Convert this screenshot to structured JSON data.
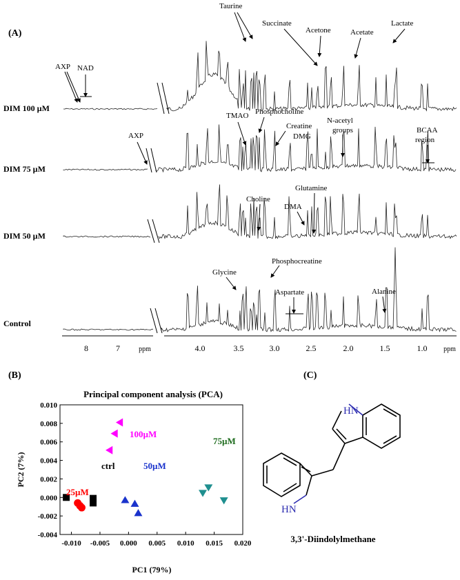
{
  "panel_a": {
    "label": "(A)",
    "spectra": [
      {
        "name": "DIM 100 µM",
        "key": "dim100"
      },
      {
        "name": "DIM 75 µM",
        "key": "dim75"
      },
      {
        "name": "DIM 50 µM",
        "key": "dim50"
      },
      {
        "name": "Control",
        "key": "control"
      }
    ],
    "axis_left": {
      "ticks": [
        "8",
        "7"
      ],
      "unit": "ppm"
    },
    "axis_right": {
      "ticks": [
        "4.0",
        "3.5",
        "3.0",
        "2.5",
        "2.0",
        "1.5",
        "1.0"
      ],
      "unit": "ppm"
    },
    "annotations": [
      {
        "text": "AXP",
        "key": "axp1"
      },
      {
        "text": "NAD",
        "key": "nad"
      },
      {
        "text": "Taurine",
        "key": "taurine"
      },
      {
        "text": "Succinate",
        "key": "succinate"
      },
      {
        "text": "Acetone",
        "key": "acetone"
      },
      {
        "text": "Acetate",
        "key": "acetate"
      },
      {
        "text": "Lactate",
        "key": "lactate"
      },
      {
        "text": "AXP",
        "key": "axp2"
      },
      {
        "text": "TMAO",
        "key": "tmao"
      },
      {
        "text": "Phosphocholine",
        "key": "phosphocholine"
      },
      {
        "text": "Creatine",
        "key": "creatine"
      },
      {
        "text": "DMG",
        "key": "dmg"
      },
      {
        "text": "N-acetyl",
        "key": "nacetyl1"
      },
      {
        "text": "groups",
        "key": "nacetyl2"
      },
      {
        "text": "BCAA",
        "key": "bcaa1"
      },
      {
        "text": "region",
        "key": "bcaa2"
      },
      {
        "text": "Glutamine",
        "key": "glutamine"
      },
      {
        "text": "Choline",
        "key": "choline"
      },
      {
        "text": "DMA",
        "key": "dma"
      },
      {
        "text": "Glycine",
        "key": "glycine"
      },
      {
        "text": "Phosphocreatine",
        "key": "phosphocreatine"
      },
      {
        "text": "Aspartate",
        "key": "aspartate"
      },
      {
        "text": "Alanine",
        "key": "alanine"
      }
    ]
  },
  "panel_b": {
    "label": "(B)",
    "chart_data": {
      "type": "scatter",
      "title": "Principal component analysis (PCA)",
      "xlabel": "PC1 (79%)",
      "ylabel": "PC2 (7%)",
      "xlim": [
        -0.012,
        0.02
      ],
      "ylim": [
        -0.004,
        0.01
      ],
      "xticks": [
        "-0.010",
        "-0.005",
        "0.000",
        "0.005",
        "0.010",
        "0.015",
        "0.020"
      ],
      "yticks": [
        "0.010",
        "0.008",
        "0.006",
        "0.004",
        "0.002",
        "0.000",
        "-0.002",
        "-0.004"
      ],
      "grid": false,
      "series": [
        {
          "name": "ctrl",
          "marker": "square",
          "color": "#000000",
          "points": [
            [
              -0.0109,
              0.0
            ],
            [
              -0.0062,
              -0.0001
            ],
            [
              -0.0062,
              -0.0006
            ]
          ]
        },
        {
          "name": "25µM",
          "marker": "circle",
          "color": "#ff0000",
          "points": [
            [
              -0.0089,
              -0.0006
            ],
            [
              -0.0085,
              -0.0009
            ],
            [
              -0.0082,
              -0.0011
            ]
          ]
        },
        {
          "name": "50µM",
          "marker": "triangle-up",
          "color": "#1a33cc",
          "points": [
            [
              -0.0006,
              -0.0003
            ],
            [
              0.0011,
              -0.0007
            ],
            [
              0.0017,
              -0.0017
            ]
          ]
        },
        {
          "name": "75µM",
          "marker": "triangle-down",
          "color": "#1f8f8f",
          "points": [
            [
              0.014,
              0.0011
            ],
            [
              0.013,
              0.0005
            ],
            [
              0.0167,
              -0.0003
            ]
          ]
        },
        {
          "name": "100µM",
          "marker": "triangle-left",
          "color": "#ff00ff",
          "points": [
            [
              -0.0015,
              0.0081
            ],
            [
              -0.0024,
              0.0069
            ],
            [
              -0.0033,
              0.0051
            ]
          ]
        }
      ],
      "label_colors": {
        "ctrl": "#000000",
        "25µM": "#ff0000",
        "50µM": "#1a33cc",
        "75µM": "#1d6b1d",
        "100µM": "#ff00ff"
      }
    }
  },
  "panel_c": {
    "label": "(C)",
    "compound": "3,3'-Diindolylmethane",
    "nh_label": "HN"
  }
}
